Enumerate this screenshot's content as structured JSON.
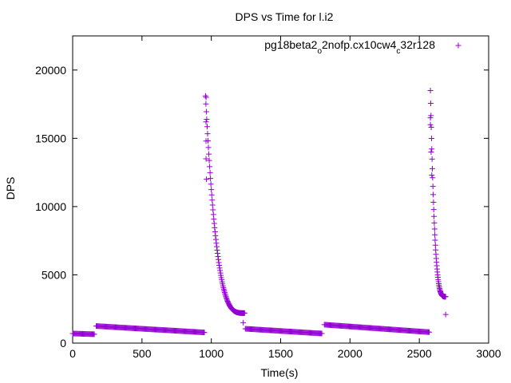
{
  "chart_data": {
    "type": "scatter",
    "title": "DPS vs Time for l.i2",
    "xlabel": "Time(s)",
    "ylabel": "DPS",
    "xlim": [
      0,
      3000
    ],
    "ylim": [
      0,
      22500
    ],
    "xticks": [
      0,
      500,
      1000,
      1500,
      2000,
      2500,
      3000
    ],
    "yticks": [
      0,
      5000,
      10000,
      15000,
      20000
    ],
    "grid": false,
    "legend_position": "top-right",
    "marker": "plus",
    "series": [
      {
        "name": "pg18beta2_o2nofp.cx10cw4_c32r128",
        "color": "#9400d3",
        "segments": [
          {
            "kind": "linear",
            "x0": 0,
            "x1": 160,
            "y0": 700,
            "y1": 650,
            "step": 6
          },
          {
            "kind": "linear",
            "x0": 170,
            "x1": 950,
            "y0": 1250,
            "y1": 780,
            "step": 6
          },
          {
            "kind": "decay",
            "x0": 958,
            "x1": 1240,
            "y0": 18100,
            "yEnd": 2200,
            "step": 3
          },
          {
            "kind": "linear",
            "x0": 1245,
            "x1": 1800,
            "y0": 1050,
            "y1": 700,
            "step": 6
          },
          {
            "kind": "linear",
            "x0": 1815,
            "x1": 2575,
            "y0": 1350,
            "y1": 800,
            "step": 6
          },
          {
            "kind": "decay",
            "x0": 2580,
            "x1": 2690,
            "y0": 18500,
            "yEnd": 3400,
            "step": 2
          }
        ],
        "points": [
          [
            962,
            18000
          ],
          [
            962,
            16200
          ],
          [
            962,
            14800
          ],
          [
            962,
            13500
          ],
          [
            965,
            12000
          ],
          [
            1230,
            1500
          ],
          [
            2580,
            16500
          ],
          [
            2580,
            16000
          ],
          [
            2585,
            14000
          ],
          [
            2590,
            12300
          ],
          [
            2690,
            2100
          ]
        ]
      }
    ]
  }
}
